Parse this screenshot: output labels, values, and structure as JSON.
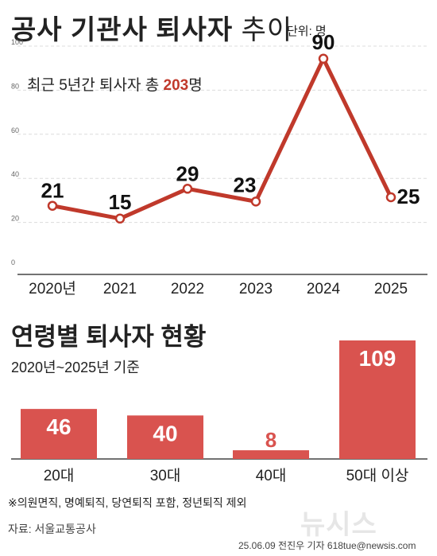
{
  "header": {
    "title_bold": "공사 기관사 퇴사자",
    "title_light": "추이",
    "unit": "단위: 명"
  },
  "line_chart": {
    "subtitle_prefix": "최근 5년간 퇴사자 총 ",
    "subtitle_total": "203",
    "subtitle_suffix": "명"
  },
  "bar_chart": {
    "title": "연령별 퇴사자 현황",
    "subtitle": "2020년~2025년 기준"
  },
  "footer": {
    "note": "※의원면직, 명예퇴직, 당연퇴직 포함, 정년퇴직 제외",
    "source": "자료: 서울교통공사",
    "credit": "25.06.09 전진우 기자 618tue@newsis.com",
    "watermark": "뉴시스"
  },
  "chart_data": [
    {
      "type": "line",
      "categories": [
        "2020년",
        "2021",
        "2022",
        "2023",
        "2024",
        "2025"
      ],
      "values": [
        21,
        15,
        29,
        23,
        90,
        25
      ],
      "value_labels": [
        "21",
        "15",
        "29",
        "23",
        "90",
        "25"
      ],
      "ylim": [
        0,
        100
      ],
      "y_ticks": [
        "0",
        "20",
        "40",
        "60",
        "80",
        "100"
      ],
      "grid": true,
      "color": "#c0392b"
    },
    {
      "type": "bar",
      "categories": [
        "20대",
        "30대",
        "40대",
        "50대 이상"
      ],
      "values": [
        46,
        40,
        8,
        109
      ],
      "value_labels": [
        "46",
        "40",
        "8",
        "109"
      ],
      "color": "#d9534f",
      "label_color_inside": "#ffffff",
      "label_color_outside": "#d9534f"
    }
  ]
}
